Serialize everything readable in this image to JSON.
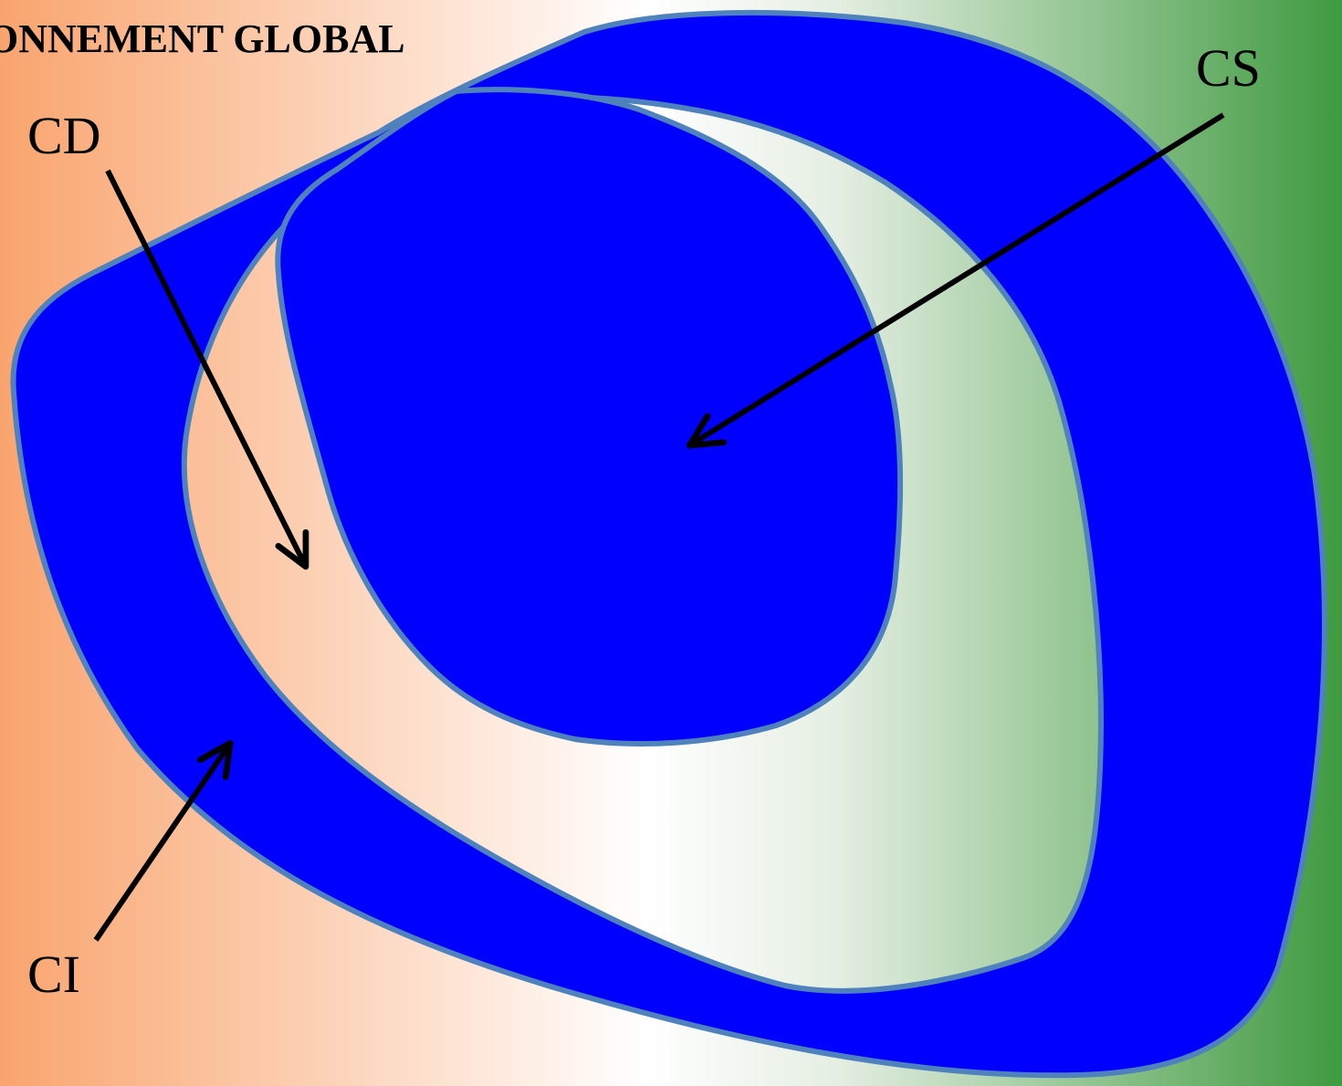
{
  "title": "ONNEMENT GLOBAL",
  "labels": {
    "cs": "CS",
    "cd": "CD",
    "ci": "CI"
  },
  "colors": {
    "blob_fill": "#0000ff",
    "blob_stroke": "#4f81bd",
    "arrow": "#000000",
    "gradient_left": "#f9a46e",
    "gradient_mid": "#ffffff",
    "gradient_right": "#3f9a40"
  }
}
